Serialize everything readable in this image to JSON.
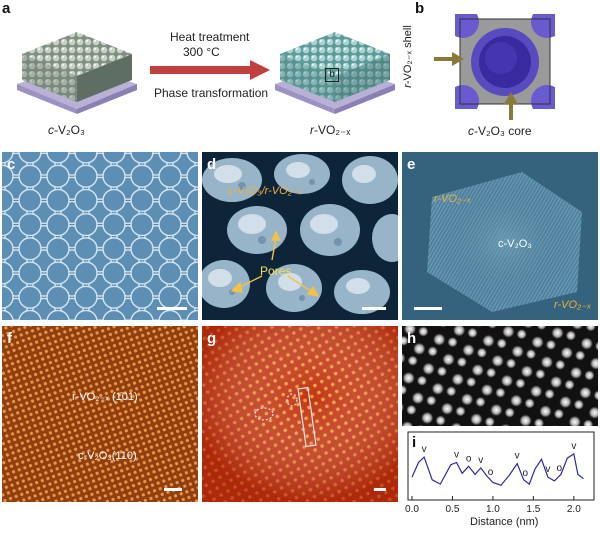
{
  "panels": {
    "a": {
      "letter": "a",
      "left_label_italic": "c",
      "left_label_rest": "-V₂O₃",
      "right_label_italic": "r",
      "right_label_rest": "-VO₂₋ₓ",
      "arrow_top_line1": "Heat treatment",
      "arrow_top_line2": "300 °C",
      "arrow_bottom": "Phase transformation",
      "inset_box_label": "b"
    },
    "b": {
      "letter": "b",
      "shell_label_italic": "r",
      "shell_label_rest": "-VO₂₋ₓ shell",
      "core_label_italic": "c",
      "core_label_rest": "-V₂O₃ core"
    },
    "c": {
      "letter": "c"
    },
    "d": {
      "letter": "d",
      "phase_label": "c-V₂O₃/r-VO₂₋ₓ",
      "pores_label": "Pores"
    },
    "e": {
      "letter": "e",
      "shell_label": "r-VO₂₋ₓ",
      "core_label": "c-V₂O₃",
      "edge_label": "r-VO₂₋ₓ"
    },
    "f": {
      "letter": "f",
      "top_label": "r-VO₂₋ₓ (1̄01)",
      "bottom_label": "c-V₂O₃(110)"
    },
    "g": {
      "letter": "g"
    },
    "h": {
      "letter": "h"
    },
    "i": {
      "letter": "i",
      "xlabel": "Distance (nm)"
    }
  },
  "colors": {
    "sem_bg": "#4a7aa0",
    "tem_bg": "#3e6a86",
    "haadf_red": "#c2330f",
    "profile_line": "#2a2aa0",
    "shell_purple": "#6a5ad0",
    "arrow_red": "#c04040"
  },
  "chart_data": {
    "type": "line",
    "title": "",
    "xlabel": "Distance (nm)",
    "ylabel": "",
    "xlim": [
      0,
      2.2
    ],
    "ylim": [
      0,
      1
    ],
    "x_ticks": [
      0.0,
      0.5,
      1.0,
      1.5,
      2.0
    ],
    "x_tick_labels": [
      "0.0",
      "0.5",
      "1.0",
      "1.5",
      "2.0"
    ],
    "series": [
      {
        "x": [
          0.0,
          0.08,
          0.15,
          0.25,
          0.35,
          0.48,
          0.55,
          0.62,
          0.7,
          0.78,
          0.85,
          0.92,
          1.0,
          1.1,
          1.2,
          1.3,
          1.38,
          1.45,
          1.52,
          1.6,
          1.68,
          1.76,
          1.84,
          1.92,
          2.0,
          2.05,
          2.12
        ],
        "values": [
          0.35,
          0.62,
          0.72,
          0.3,
          0.22,
          0.58,
          0.62,
          0.42,
          0.55,
          0.4,
          0.52,
          0.38,
          0.25,
          0.2,
          0.38,
          0.6,
          0.3,
          0.22,
          0.5,
          0.68,
          0.35,
          0.28,
          0.4,
          0.7,
          0.78,
          0.4,
          0.32
        ]
      }
    ],
    "markers": [
      {
        "symbol": "v",
        "x": 0.15
      },
      {
        "symbol": "v",
        "x": 0.55
      },
      {
        "symbol": "o",
        "x": 0.7
      },
      {
        "symbol": "v",
        "x": 0.85
      },
      {
        "symbol": "o",
        "x": 0.97
      },
      {
        "symbol": "v",
        "x": 1.3
      },
      {
        "symbol": "o",
        "x": 1.4
      },
      {
        "symbol": "v",
        "x": 1.68
      },
      {
        "symbol": "o",
        "x": 1.82
      },
      {
        "symbol": "v",
        "x": 2.0
      }
    ]
  }
}
